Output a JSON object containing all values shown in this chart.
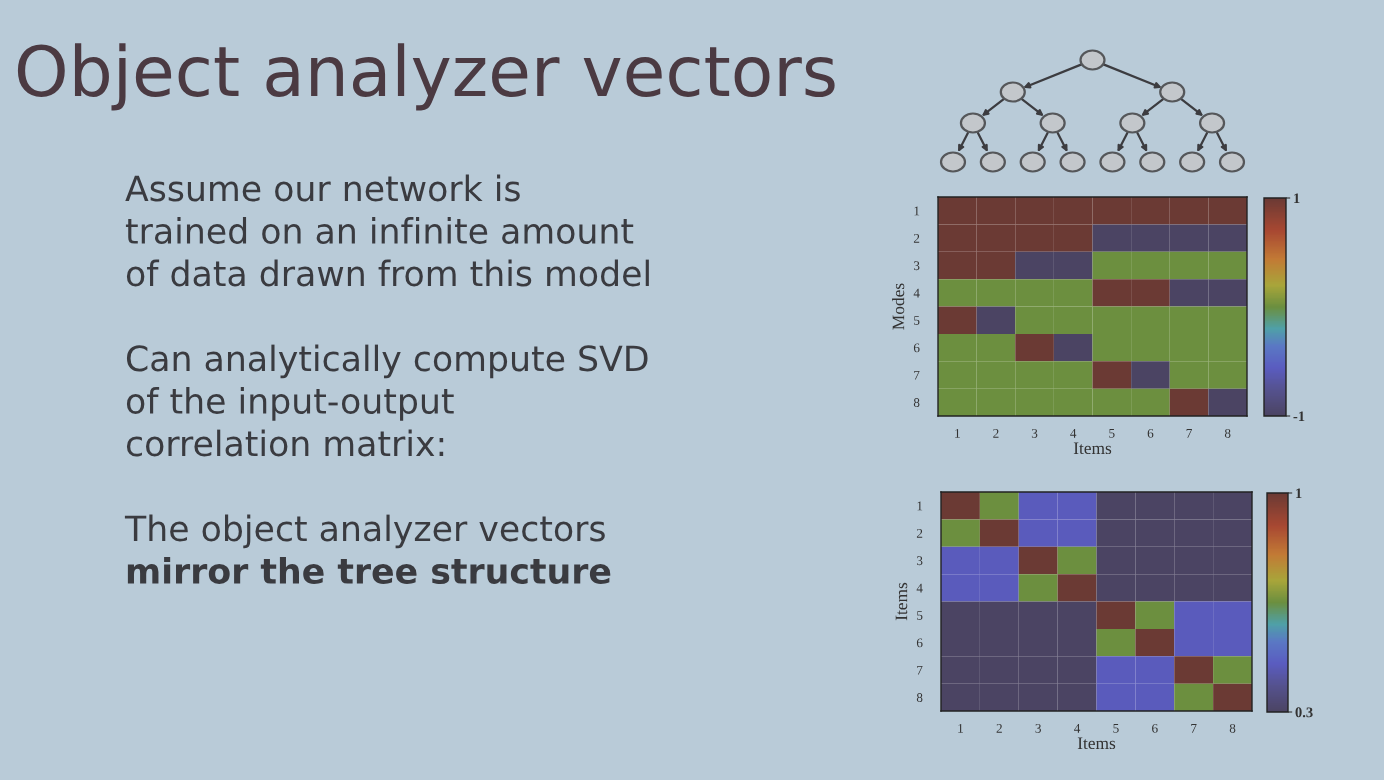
{
  "chart_data": [
    {
      "type": "other",
      "title": "Object analyzer vectors",
      "annotations": [
        "Assume our network is\ntrained on an infinite amount\nof data drawn from this model",
        "Can analytically compute SVD\nof the input-output\ncorrelation matrix:",
        "The object analyzer vectors\nmirror the tree structure"
      ]
    },
    {
      "type": "heatmap",
      "xlabel": "Items",
      "ylabel": "Modes",
      "categories": [
        "1",
        "2",
        "3",
        "4",
        "5",
        "6",
        "7",
        "8"
      ],
      "y_categories": [
        "1",
        "2",
        "3",
        "4",
        "5",
        "6",
        "7",
        "8"
      ],
      "cells": [
        [
          1,
          1,
          1,
          1,
          1,
          1,
          1,
          1
        ],
        [
          1,
          1,
          1,
          1,
          -1,
          -1,
          -1,
          -1
        ],
        [
          1,
          1,
          -1,
          -1,
          0,
          0,
          0,
          0
        ],
        [
          0,
          0,
          0,
          0,
          1,
          1,
          -1,
          -1
        ],
        [
          1,
          -1,
          0,
          0,
          0,
          0,
          0,
          0
        ],
        [
          0,
          0,
          1,
          -1,
          0,
          0,
          0,
          0
        ],
        [
          0,
          0,
          0,
          0,
          1,
          -1,
          0,
          0
        ],
        [
          0,
          0,
          0,
          0,
          0,
          0,
          1,
          -1
        ]
      ],
      "clim": [
        -1,
        1
      ],
      "cticks": [
        -1,
        1
      ]
    },
    {
      "type": "heatmap",
      "xlabel": "Items",
      "ylabel": "Items",
      "categories": [
        "1",
        "2",
        "3",
        "4",
        "5",
        "6",
        "7",
        "8"
      ],
      "y_categories": [
        "1",
        "2",
        "3",
        "4",
        "5",
        "6",
        "7",
        "8"
      ],
      "cells": [
        [
          1,
          0.65,
          0.45,
          0.45,
          0.3,
          0.3,
          0.3,
          0.3
        ],
        [
          0.65,
          1,
          0.45,
          0.45,
          0.3,
          0.3,
          0.3,
          0.3
        ],
        [
          0.45,
          0.45,
          1,
          0.65,
          0.3,
          0.3,
          0.3,
          0.3
        ],
        [
          0.45,
          0.45,
          0.65,
          1,
          0.3,
          0.3,
          0.3,
          0.3
        ],
        [
          0.3,
          0.3,
          0.3,
          0.3,
          1,
          0.65,
          0.45,
          0.45
        ],
        [
          0.3,
          0.3,
          0.3,
          0.3,
          0.65,
          1,
          0.45,
          0.45
        ],
        [
          0.3,
          0.3,
          0.3,
          0.3,
          0.45,
          0.45,
          1,
          0.65
        ],
        [
          0.3,
          0.3,
          0.3,
          0.3,
          0.45,
          0.45,
          0.65,
          1
        ]
      ],
      "clim": [
        0.3,
        1
      ],
      "cticks": [
        0.3,
        1
      ]
    }
  ]
}
